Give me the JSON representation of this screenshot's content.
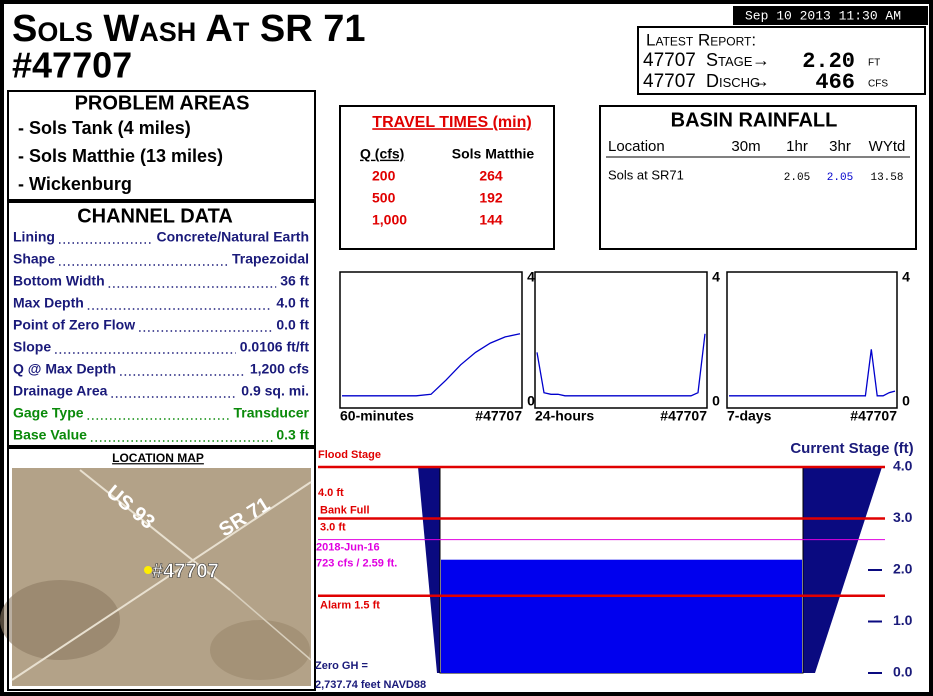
{
  "header": {
    "title": "Sols Wash At SR 71",
    "station": "#47707",
    "timestamp": "Sep 10 2013 11:30 AM"
  },
  "latest_report": {
    "title": "Latest Report:",
    "rows": [
      {
        "id": "47707",
        "label": "Stage",
        "arrow": "→",
        "value": "2.20",
        "unit": "FT"
      },
      {
        "id": "47707",
        "label": "Dischg",
        "arrow": "→",
        "value": "466",
        "unit": "CFS"
      }
    ]
  },
  "problem_areas": {
    "title": "PROBLEM AREAS",
    "items": [
      "- Sols Tank (4 miles)",
      "- Sols Matthie (13 miles)",
      "- Wickenburg"
    ]
  },
  "channel_data": {
    "title": "CHANNEL DATA",
    "rows": [
      {
        "label": "Lining",
        "value": "Concrete/Natural Earth",
        "color": "#1a1a7a"
      },
      {
        "label": "Shape",
        "value": "Trapezoidal",
        "color": "#1a1a7a"
      },
      {
        "label": "Bottom Width",
        "value": "36 ft",
        "color": "#1a1a7a"
      },
      {
        "label": "Max Depth",
        "value": "4.0 ft",
        "color": "#1a1a7a"
      },
      {
        "label": "Point of Zero Flow",
        "value": "0.0 ft",
        "color": "#1a1a7a"
      },
      {
        "label": "Slope",
        "value": "0.0106 ft/ft",
        "color": "#1a1a7a"
      },
      {
        "label": "Q @ Max Depth",
        "value": "1,200 cfs",
        "color": "#1a1a7a"
      },
      {
        "label": "Drainage Area",
        "value": "0.9 sq. mi.",
        "color": "#1a1a7a"
      },
      {
        "label": "Gage Type",
        "value": "Transducer",
        "color": "#0a8a0a"
      },
      {
        "label": "Base Value",
        "value": "0.3 ft",
        "color": "#0a8a0a"
      }
    ]
  },
  "location_map": {
    "title": "LOCATION MAP",
    "road_1": "US 93",
    "road_2": "SR 71",
    "gauge": "#47707"
  },
  "travel_times": {
    "title": "TRAVEL TIMES (min)",
    "columns": [
      "Q (cfs)",
      "Sols Matthie"
    ],
    "rows": [
      [
        "200",
        "264"
      ],
      [
        "500",
        "192"
      ],
      [
        "1,000",
        "144"
      ]
    ]
  },
  "basin_rainfall": {
    "title": "BASIN RAINFALL",
    "columns": [
      "Location",
      "30m",
      "1hr",
      "3hr",
      "WYtd"
    ],
    "rows": [
      {
        "location": "Sols at SR71",
        "1hr": "2.05",
        "3hr": "2.05",
        "WYtd": "13.58"
      }
    ]
  },
  "sparklines": [
    {
      "label": "60-minutes",
      "station": "#47707",
      "ylim": [
        0,
        4
      ],
      "yticks": [
        0,
        4
      ],
      "color": "#0000cc",
      "values": [
        0.2,
        0.2,
        0.2,
        0.2,
        0.2,
        0.2,
        0.25,
        0.7,
        1.2,
        1.6,
        1.9,
        2.1,
        2.2
      ]
    },
    {
      "label": "24-hours",
      "station": "#47707",
      "ylim": [
        0,
        4
      ],
      "yticks": [
        0,
        4
      ],
      "color": "#0000cc",
      "values": [
        1.6,
        0.3,
        0.25,
        0.25,
        0.2,
        0.2,
        0.2,
        0.2,
        0.2,
        0.2,
        0.2,
        0.2,
        0.2,
        0.2,
        0.2,
        0.2,
        0.2,
        0.2,
        0.2,
        0.2,
        0.2,
        0.2,
        0.2,
        0.3,
        2.2
      ]
    },
    {
      "label": "7-days",
      "station": "#47707",
      "ylim": [
        0,
        4
      ],
      "yticks": [
        0,
        4
      ],
      "color": "#0000cc",
      "values": [
        0.2,
        0.2,
        0.2,
        0.2,
        0.2,
        0.2,
        0.2,
        0.2,
        0.2,
        0.2,
        0.2,
        0.2,
        0.2,
        0.2,
        0.2,
        0.2,
        0.2,
        0.2,
        0.2,
        0.2,
        0.2,
        0.2,
        0.2,
        0.2,
        1.7,
        0.2,
        0.2,
        0.3,
        0.35
      ]
    }
  ],
  "stage_gauge": {
    "title": "Current Stage (ft)",
    "ylim": [
      0,
      4
    ],
    "yticks": [
      {
        "value": 0,
        "label": "0.0"
      },
      {
        "value": 1,
        "label": "1.0"
      },
      {
        "value": 2,
        "label": "2.0"
      },
      {
        "value": 3,
        "label": "3.0"
      },
      {
        "value": 4,
        "label": "4.0"
      }
    ],
    "current": 2.2,
    "fill_color": "#0000ee",
    "thresholds": [
      {
        "label": "Flood Stage",
        "note": "4.0 ft",
        "value": 4.0,
        "color": "#e00000"
      },
      {
        "label": "Bank Full",
        "note": "3.0 ft",
        "value": 3.0,
        "color": "#e00000"
      },
      {
        "label": "2018-Jun-16",
        "note": "723 cfs / 2.59 ft.",
        "value": 2.59,
        "color": "#e000e0"
      },
      {
        "label": "Alarm 1.5 ft",
        "value": 1.5,
        "color": "#e00000"
      }
    ],
    "zero_gh": [
      "Zero GH =",
      "2,737.74 feet NAVD88"
    ]
  }
}
